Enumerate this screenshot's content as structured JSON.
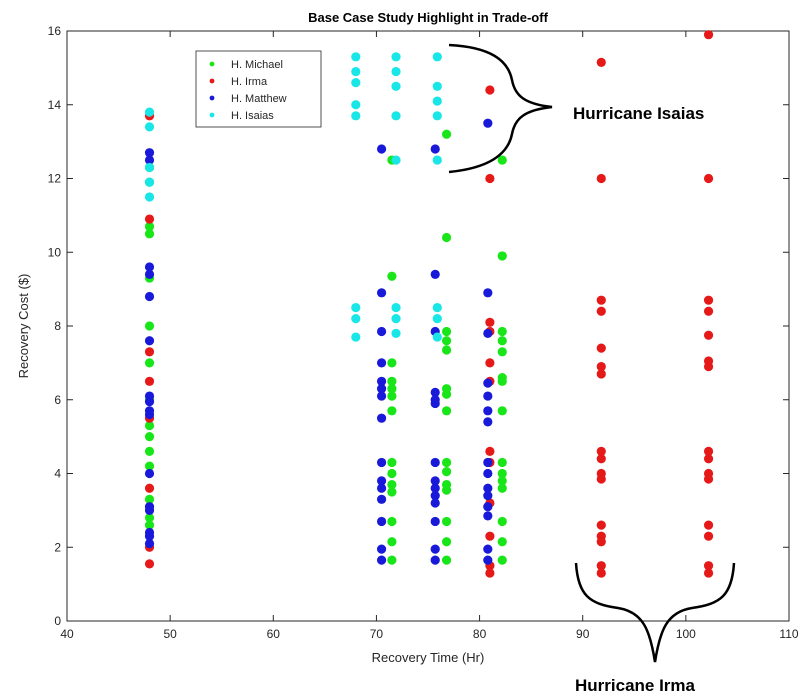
{
  "chart_data": {
    "type": "scatter",
    "title": "Base Case Study Highlight in Trade-off",
    "xlabel": "Recovery Time (Hr)",
    "ylabel": "Recovery Cost ($)",
    "xlim": [
      40,
      110
    ],
    "ylim": [
      0,
      16
    ],
    "xticks": [
      40,
      50,
      60,
      70,
      80,
      90,
      100,
      110
    ],
    "yticks": [
      0,
      2,
      4,
      6,
      8,
      10,
      12,
      14,
      16
    ],
    "grid": false,
    "legend_position": "top-left",
    "series": [
      {
        "name": "H. Michael",
        "color": "#19e619",
        "points": [
          [
            48,
            12.3
          ],
          [
            48,
            11.9
          ],
          [
            48,
            10.7
          ],
          [
            48,
            10.5
          ],
          [
            48,
            9.3
          ],
          [
            48,
            8.0
          ],
          [
            48,
            7.0
          ],
          [
            48,
            6.0
          ],
          [
            48,
            5.3
          ],
          [
            48,
            5.0
          ],
          [
            48,
            4.6
          ],
          [
            48,
            4.2
          ],
          [
            48,
            3.3
          ],
          [
            48,
            2.8
          ],
          [
            48,
            2.6
          ],
          [
            71.5,
            12.5
          ],
          [
            71.5,
            9.35
          ],
          [
            71.5,
            7.0
          ],
          [
            71.5,
            6.5
          ],
          [
            71.5,
            6.3
          ],
          [
            71.5,
            6.1
          ],
          [
            71.5,
            5.7
          ],
          [
            71.5,
            4.3
          ],
          [
            71.5,
            4.0
          ],
          [
            71.5,
            3.7
          ],
          [
            71.5,
            3.5
          ],
          [
            71.5,
            2.7
          ],
          [
            71.5,
            2.15
          ],
          [
            71.5,
            1.65
          ],
          [
            76.8,
            13.2
          ],
          [
            76.8,
            10.4
          ],
          [
            76.8,
            7.85
          ],
          [
            76.8,
            7.6
          ],
          [
            76.8,
            7.35
          ],
          [
            76.8,
            6.3
          ],
          [
            76.8,
            6.15
          ],
          [
            76.8,
            5.7
          ],
          [
            76.8,
            4.3
          ],
          [
            76.8,
            4.05
          ],
          [
            76.8,
            3.7
          ],
          [
            76.8,
            3.55
          ],
          [
            76.8,
            2.7
          ],
          [
            76.8,
            2.15
          ],
          [
            76.8,
            1.65
          ],
          [
            82.2,
            12.5
          ],
          [
            82.2,
            9.9
          ],
          [
            82.2,
            7.85
          ],
          [
            82.2,
            7.6
          ],
          [
            82.2,
            7.3
          ],
          [
            82.2,
            6.6
          ],
          [
            82.2,
            6.5
          ],
          [
            82.2,
            5.7
          ],
          [
            82.2,
            4.3
          ],
          [
            82.2,
            4.0
          ],
          [
            82.2,
            3.8
          ],
          [
            82.2,
            3.6
          ],
          [
            82.2,
            2.7
          ],
          [
            82.2,
            2.15
          ],
          [
            82.2,
            1.65
          ]
        ]
      },
      {
        "name": "H. Irma",
        "color": "#e61919",
        "points": [
          [
            48,
            13.7
          ],
          [
            48,
            10.9
          ],
          [
            48,
            7.3
          ],
          [
            48,
            6.5
          ],
          [
            48,
            5.5
          ],
          [
            48,
            3.6
          ],
          [
            48,
            2.0
          ],
          [
            48,
            1.55
          ],
          [
            81,
            14.4
          ],
          [
            81,
            12.0
          ],
          [
            81,
            8.1
          ],
          [
            81,
            7.85
          ],
          [
            81,
            7.0
          ],
          [
            81,
            6.5
          ],
          [
            81,
            4.6
          ],
          [
            81,
            4.3
          ],
          [
            81,
            3.2
          ],
          [
            81,
            2.3
          ],
          [
            81,
            1.5
          ],
          [
            81,
            1.3
          ],
          [
            91.8,
            15.15
          ],
          [
            91.8,
            12.0
          ],
          [
            91.8,
            8.7
          ],
          [
            91.8,
            8.4
          ],
          [
            91.8,
            7.4
          ],
          [
            91.8,
            6.9
          ],
          [
            91.8,
            6.7
          ],
          [
            91.8,
            4.6
          ],
          [
            91.8,
            4.4
          ],
          [
            91.8,
            4.0
          ],
          [
            91.8,
            3.85
          ],
          [
            91.8,
            2.6
          ],
          [
            91.8,
            2.3
          ],
          [
            91.8,
            2.15
          ],
          [
            91.8,
            1.5
          ],
          [
            91.8,
            1.3
          ],
          [
            102.2,
            15.9
          ],
          [
            102.2,
            12.0
          ],
          [
            102.2,
            8.7
          ],
          [
            102.2,
            8.4
          ],
          [
            102.2,
            7.75
          ],
          [
            102.2,
            7.05
          ],
          [
            102.2,
            6.9
          ],
          [
            102.2,
            4.6
          ],
          [
            102.2,
            4.4
          ],
          [
            102.2,
            4.0
          ],
          [
            102.2,
            3.85
          ],
          [
            102.2,
            2.6
          ],
          [
            102.2,
            2.3
          ],
          [
            102.2,
            1.5
          ],
          [
            102.2,
            1.3
          ]
        ]
      },
      {
        "name": "H. Matthew",
        "color": "#1919d9",
        "points": [
          [
            48,
            12.7
          ],
          [
            48,
            12.5
          ],
          [
            48,
            9.6
          ],
          [
            48,
            9.4
          ],
          [
            48,
            8.8
          ],
          [
            48,
            7.6
          ],
          [
            48,
            6.1
          ],
          [
            48,
            5.95
          ],
          [
            48,
            5.7
          ],
          [
            48,
            5.6
          ],
          [
            48,
            4.0
          ],
          [
            48,
            3.1
          ],
          [
            48,
            3.0
          ],
          [
            48,
            2.4
          ],
          [
            48,
            2.3
          ],
          [
            48,
            2.1
          ],
          [
            70.5,
            12.8
          ],
          [
            70.5,
            8.9
          ],
          [
            70.5,
            7.85
          ],
          [
            70.5,
            7.0
          ],
          [
            70.5,
            6.5
          ],
          [
            70.5,
            6.3
          ],
          [
            70.5,
            6.1
          ],
          [
            70.5,
            5.5
          ],
          [
            70.5,
            4.3
          ],
          [
            70.5,
            3.8
          ],
          [
            70.5,
            3.6
          ],
          [
            70.5,
            3.3
          ],
          [
            70.5,
            2.7
          ],
          [
            70.5,
            1.95
          ],
          [
            70.5,
            1.65
          ],
          [
            75.7,
            12.8
          ],
          [
            75.7,
            9.4
          ],
          [
            75.7,
            7.85
          ],
          [
            75.7,
            6.2
          ],
          [
            75.7,
            6.0
          ],
          [
            75.7,
            5.9
          ],
          [
            75.7,
            4.3
          ],
          [
            75.7,
            3.8
          ],
          [
            75.7,
            3.6
          ],
          [
            75.7,
            3.4
          ],
          [
            75.7,
            3.2
          ],
          [
            75.7,
            2.7
          ],
          [
            75.7,
            1.95
          ],
          [
            75.7,
            1.65
          ],
          [
            80.8,
            13.5
          ],
          [
            80.8,
            8.9
          ],
          [
            80.8,
            7.8
          ],
          [
            80.8,
            6.45
          ],
          [
            80.8,
            6.1
          ],
          [
            80.8,
            5.7
          ],
          [
            80.8,
            5.4
          ],
          [
            80.8,
            4.3
          ],
          [
            80.8,
            4.0
          ],
          [
            80.8,
            3.6
          ],
          [
            80.8,
            3.4
          ],
          [
            80.8,
            3.1
          ],
          [
            80.8,
            2.85
          ],
          [
            80.8,
            1.95
          ],
          [
            80.8,
            1.65
          ]
        ]
      },
      {
        "name": "H. Isaias",
        "color": "#19e6e6",
        "points": [
          [
            48,
            13.8
          ],
          [
            48,
            13.4
          ],
          [
            48,
            12.3
          ],
          [
            48,
            11.9
          ],
          [
            48,
            11.5
          ],
          [
            68,
            15.3
          ],
          [
            68,
            14.9
          ],
          [
            68,
            14.6
          ],
          [
            68,
            14.0
          ],
          [
            68,
            13.7
          ],
          [
            68,
            8.5
          ],
          [
            68,
            8.2
          ],
          [
            68,
            7.7
          ],
          [
            71.9,
            15.3
          ],
          [
            71.9,
            14.9
          ],
          [
            71.9,
            14.5
          ],
          [
            71.9,
            13.7
          ],
          [
            71.9,
            12.5
          ],
          [
            71.9,
            8.5
          ],
          [
            71.9,
            8.2
          ],
          [
            71.9,
            7.8
          ],
          [
            75.9,
            15.3
          ],
          [
            75.9,
            14.5
          ],
          [
            75.9,
            14.1
          ],
          [
            75.9,
            13.7
          ],
          [
            75.9,
            12.5
          ],
          [
            75.9,
            8.5
          ],
          [
            75.9,
            8.2
          ],
          [
            75.9,
            7.7
          ]
        ]
      }
    ],
    "annotations": [
      {
        "text": "Hurricane Isaias"
      },
      {
        "text": "Hurricane Irma"
      }
    ]
  }
}
